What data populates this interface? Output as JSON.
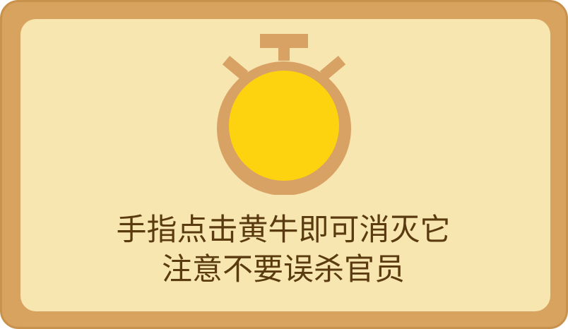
{
  "dialog": {
    "icon": "stopwatch-icon",
    "colors": {
      "frame": "#d8a35f",
      "panel": "#f8e6b1",
      "stopwatch_body": "#d9a265",
      "stopwatch_face": "#fdd20f",
      "text": "#5a3b10"
    },
    "message_line1": "手指点击黄牛即可消灭它",
    "message_line2": "注意不要误杀官员"
  }
}
